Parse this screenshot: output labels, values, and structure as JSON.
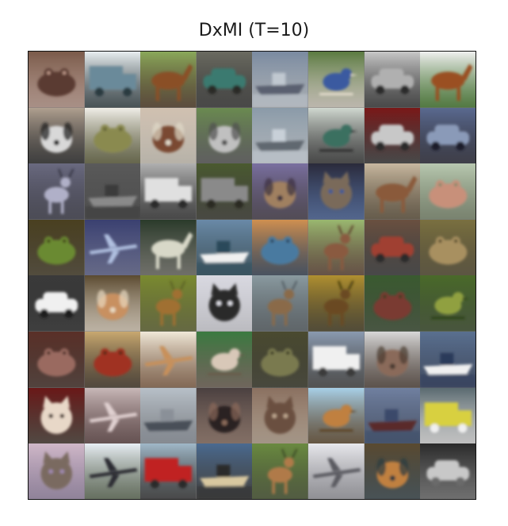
{
  "figure": {
    "title": "DxMI (T=10)"
  },
  "grid": {
    "rows": 8,
    "cols": 8,
    "tiles": [
      {
        "subject": "frog",
        "bg": "#7a5a4a",
        "fg": "#5a3a30",
        "accent": "#c8a090"
      },
      {
        "subject": "truck",
        "bg": "#e8eef0",
        "fg": "#6a8a9a",
        "accent": "#2a3a40"
      },
      {
        "subject": "horse",
        "bg": "#8aa85a",
        "fg": "#8a5028",
        "accent": "#4a3018"
      },
      {
        "subject": "car",
        "bg": "#6a6a60",
        "fg": "#3a7a70",
        "accent": "#2a2a28"
      },
      {
        "subject": "ship",
        "bg": "#7a8aa0",
        "fg": "#5a6070",
        "accent": "#c0c8d0"
      },
      {
        "subject": "bird",
        "bg": "#5a7a40",
        "fg": "#3a5aa0",
        "accent": "#e8e0d0"
      },
      {
        "subject": "car",
        "bg": "#c8c8c8",
        "fg": "#b0b0b0",
        "accent": "#2a2a2a"
      },
      {
        "subject": "horse",
        "bg": "#f0f0f0",
        "fg": "#9a5020",
        "accent": "#3a7a20"
      },
      {
        "subject": "dog",
        "bg": "#b0a090",
        "fg": "#d8d8d8",
        "accent": "#1a1a1a"
      },
      {
        "subject": "frog",
        "bg": "#f0eee8",
        "fg": "#8a8a50",
        "accent": "#5a5a30"
      },
      {
        "subject": "dog",
        "bg": "#d0c0b0",
        "fg": "#7a4a30",
        "accent": "#e0d8c8"
      },
      {
        "subject": "dog",
        "bg": "#6a8a50",
        "fg": "#c0c0c0",
        "accent": "#505050"
      },
      {
        "subject": "ship",
        "bg": "#8a9aa8",
        "fg": "#606870",
        "accent": "#c8d0d8"
      },
      {
        "subject": "bird",
        "bg": "#d0d8d0",
        "fg": "#3a7060",
        "accent": "#2a2a2a"
      },
      {
        "subject": "car",
        "bg": "#7a1818",
        "fg": "#c8c8c8",
        "accent": "#2a2a2a"
      },
      {
        "subject": "car",
        "bg": "#5a6a90",
        "fg": "#8a9ab8",
        "accent": "#1a1a2a"
      },
      {
        "subject": "deer",
        "bg": "#6a6a80",
        "fg": "#b0b0c8",
        "accent": "#303040"
      },
      {
        "subject": "ship",
        "bg": "#5a5a5a",
        "fg": "#8a8a8a",
        "accent": "#3a3a3a"
      },
      {
        "subject": "truck",
        "bg": "#b0b0b0",
        "fg": "#e0e0e0",
        "accent": "#2a2a2a"
      },
      {
        "subject": "truck",
        "bg": "#4a5a30",
        "fg": "#8a8a8a",
        "accent": "#2a2a20"
      },
      {
        "subject": "dog",
        "bg": "#7a70a0",
        "fg": "#a08060",
        "accent": "#3a3040"
      },
      {
        "subject": "cat",
        "bg": "#2a2a3a",
        "fg": "#7a6a5a",
        "accent": "#3a5a9a"
      },
      {
        "subject": "horse",
        "bg": "#c8b8a0",
        "fg": "#8a5a3a",
        "accent": "#5a4a30"
      },
      {
        "subject": "frog",
        "bg": "#b8c8b0",
        "fg": "#c8907a",
        "accent": "#7a8a6a"
      },
      {
        "subject": "frog",
        "bg": "#4a4020",
        "fg": "#6a8a30",
        "accent": "#3a3018"
      },
      {
        "subject": "airplane",
        "bg": "#3a4070",
        "fg": "#b0c0e0",
        "accent": "#5a6090"
      },
      {
        "subject": "horse",
        "bg": "#2a3a2a",
        "fg": "#d8d8c8",
        "accent": "#6a6a60"
      },
      {
        "subject": "ship",
        "bg": "#6a8aa8",
        "fg": "#f0f0f0",
        "accent": "#2a4a5a"
      },
      {
        "subject": "frog",
        "bg": "#d09050",
        "fg": "#4a7aa0",
        "accent": "#2a3a50"
      },
      {
        "subject": "deer",
        "bg": "#9ab870",
        "fg": "#8a5a40",
        "accent": "#5a3a28"
      },
      {
        "subject": "car",
        "bg": "#6a5040",
        "fg": "#a04030",
        "accent": "#2a2a2a"
      },
      {
        "subject": "frog",
        "bg": "#7a7040",
        "fg": "#a89060",
        "accent": "#4a4020"
      },
      {
        "subject": "car",
        "bg": "#3a3a3a",
        "fg": "#f0f0f0",
        "accent": "#1a1a1a"
      },
      {
        "subject": "dog",
        "bg": "#5a4a30",
        "fg": "#c89060",
        "accent": "#e8d8c0"
      },
      {
        "subject": "deer",
        "bg": "#7a8a30",
        "fg": "#a07030",
        "accent": "#5a6020"
      },
      {
        "subject": "cat",
        "bg": "#d8d8e0",
        "fg": "#2a2a2a",
        "accent": "#e8e8f0"
      },
      {
        "subject": "deer",
        "bg": "#8a9aa0",
        "fg": "#8a6a4a",
        "accent": "#505a60"
      },
      {
        "subject": "deer",
        "bg": "#b09030",
        "fg": "#6a4a20",
        "accent": "#3a3010"
      },
      {
        "subject": "frog",
        "bg": "#3a5a30",
        "fg": "#7a3a30",
        "accent": "#2a4020"
      },
      {
        "subject": "bird",
        "bg": "#4a6a2a",
        "fg": "#90a040",
        "accent": "#2a4018"
      },
      {
        "subject": "frog",
        "bg": "#5a3028",
        "fg": "#9a6a60",
        "accent": "#3a2018"
      },
      {
        "subject": "frog",
        "bg": "#c8a870",
        "fg": "#a03020",
        "accent": "#3a2a18"
      },
      {
        "subject": "airplane",
        "bg": "#f0e8d8",
        "fg": "#c8905a",
        "accent": "#8a6040"
      },
      {
        "subject": "bird",
        "bg": "#3a7a40",
        "fg": "#d8c8b8",
        "accent": "#6a5a4a"
      },
      {
        "subject": "frog",
        "bg": "#4a4a30",
        "fg": "#7a7a50",
        "accent": "#2a2a18"
      },
      {
        "subject": "truck",
        "bg": "#8a9ab0",
        "fg": "#f0f0f0",
        "accent": "#3a3a3a"
      },
      {
        "subject": "dog",
        "bg": "#d8d8d8",
        "fg": "#8a6a5a",
        "accent": "#4a3a30"
      },
      {
        "subject": "ship",
        "bg": "#5a7090",
        "fg": "#f0f0f0",
        "accent": "#2a3a5a"
      },
      {
        "subject": "cat",
        "bg": "#6a1818",
        "fg": "#e8d8c8",
        "accent": "#3a2a20"
      },
      {
        "subject": "airplane",
        "bg": "#c8b8b8",
        "fg": "#e0d0d0",
        "accent": "#5a3a3a"
      },
      {
        "subject": "ship",
        "bg": "#b8c0c8",
        "fg": "#4a5058",
        "accent": "#8a9098"
      },
      {
        "subject": "dog",
        "bg": "#4a4040",
        "fg": "#2a2020",
        "accent": "#8a6a5a"
      },
      {
        "subject": "cat",
        "bg": "#8a7060",
        "fg": "#6a5040",
        "accent": "#c0a890"
      },
      {
        "subject": "bird",
        "bg": "#a8d0e8",
        "fg": "#c08040",
        "accent": "#5a4020"
      },
      {
        "subject": "ship",
        "bg": "#7080a0",
        "fg": "#5a2a2a",
        "accent": "#3a4a6a"
      },
      {
        "subject": "truck",
        "bg": "#5a6a70",
        "fg": "#d8d040",
        "accent": "#f0f0f0"
      },
      {
        "subject": "cat",
        "bg": "#d0b8c8",
        "fg": "#7a6a60",
        "accent": "#a08ab0"
      },
      {
        "subject": "airplane",
        "bg": "#e8eef4",
        "fg": "#2a2a30",
        "accent": "#5a6a50"
      },
      {
        "subject": "truck",
        "bg": "#a0b8c8",
        "fg": "#c02020",
        "accent": "#2a2a2a"
      },
      {
        "subject": "ship",
        "bg": "#4a6a90",
        "fg": "#d8c8a0",
        "accent": "#2a2a2a"
      },
      {
        "subject": "deer",
        "bg": "#6a8a40",
        "fg": "#b07a4a",
        "accent": "#3a4a20"
      },
      {
        "subject": "airplane",
        "bg": "#e8e8ec",
        "fg": "#5a5a60",
        "accent": "#a0a0a8"
      },
      {
        "subject": "dog",
        "bg": "#5a4a30",
        "fg": "#c08040",
        "accent": "#2a3a40"
      },
      {
        "subject": "car",
        "bg": "#2a2a2a",
        "fg": "#c8c8c8",
        "accent": "#6a6a6a"
      }
    ]
  }
}
